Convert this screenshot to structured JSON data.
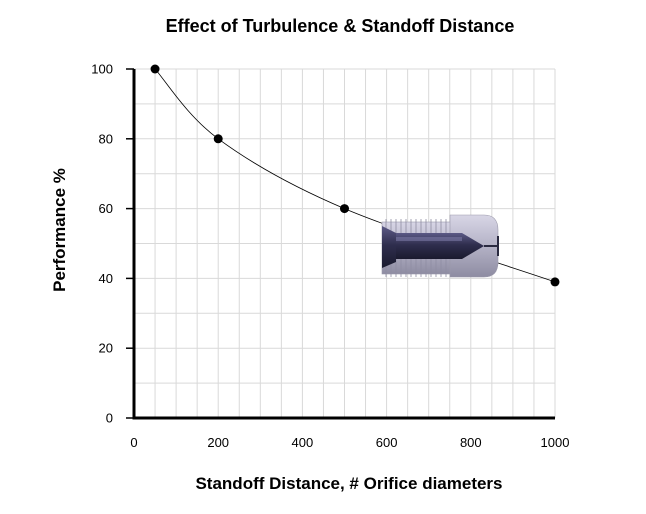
{
  "chart_data": {
    "type": "line",
    "title": "Effect of Turbulence & Standoff Distance",
    "xlabel": "Standoff Distance, # Orifice diameters",
    "ylabel": "Performance %",
    "xlim": [
      0,
      1000
    ],
    "ylim": [
      0,
      100
    ],
    "x_ticks": [
      0,
      200,
      400,
      600,
      800,
      1000
    ],
    "y_ticks": [
      0,
      20,
      40,
      60,
      80,
      100
    ],
    "grid": true,
    "legend": "none",
    "series": [
      {
        "x": [
          50,
          200,
          500,
          1000
        ],
        "y": [
          100,
          80,
          60,
          39
        ]
      }
    ],
    "colors": {
      "line": "#000000",
      "grid": "#d9d9d9",
      "marker": "#000000"
    },
    "illustration": "nozzle-icon"
  }
}
